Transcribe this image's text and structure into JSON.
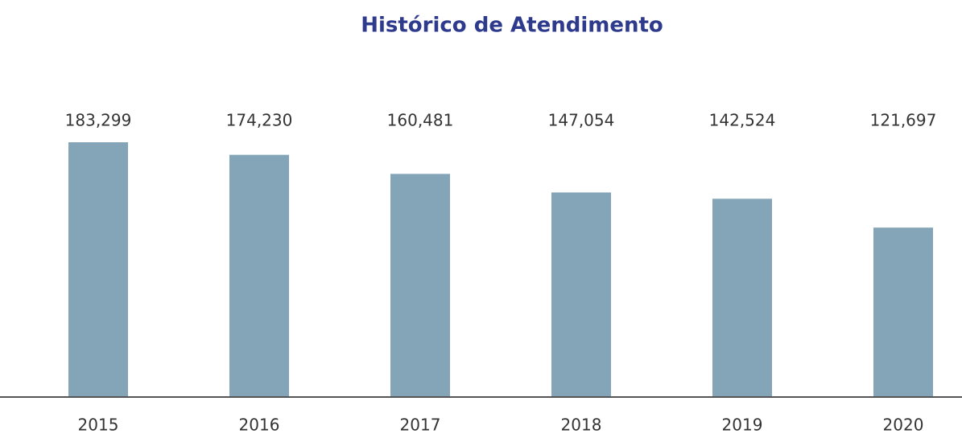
{
  "chart_data": {
    "type": "bar",
    "title": "Histórico de Atendimento",
    "categories": [
      "2015",
      "2016",
      "2017",
      "2018",
      "2019",
      "2020"
    ],
    "values": [
      183299,
      174230,
      160481,
      147054,
      142524,
      121697
    ],
    "value_labels": [
      "183,299",
      "174,230",
      "160,481",
      "147,054",
      "142,524",
      "121,697"
    ],
    "color": "#84a5b8"
  }
}
